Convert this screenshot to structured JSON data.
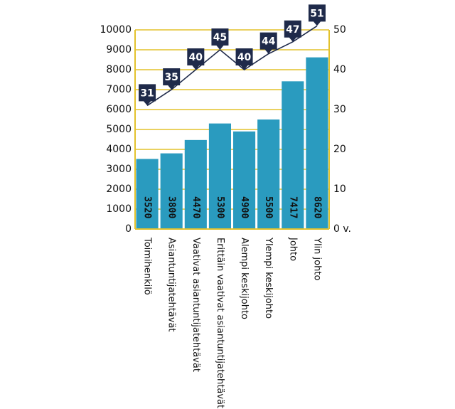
{
  "chart_data": {
    "type": "bar",
    "categories": [
      "Toimihenkilö",
      "Asiantuntijatehtävät",
      "Vaativat asiantuntijatehtävät",
      "Erittäin vaativat asiantuntijatehtävät",
      "Alempi keskijohto",
      "Ylempi keskijohto",
      "Johto",
      "Ylin johto"
    ],
    "bar_values": [
      3520,
      3800,
      4470,
      5300,
      4900,
      5500,
      7417,
      8620
    ],
    "bar_labels": [
      "3520",
      "3800",
      "4470",
      "5300",
      "4900",
      "5500",
      "7417",
      "8620"
    ],
    "line_values": [
      31,
      35,
      40,
      45,
      40,
      44,
      47,
      51
    ],
    "line_labels": [
      "31",
      "35",
      "40",
      "45",
      "40",
      "44",
      "47",
      "51"
    ],
    "left_axis": {
      "ylim": [
        0,
        10000
      ],
      "ticks": [
        "0",
        "1000",
        "2000",
        "3000",
        "4000",
        "5000",
        "6000",
        "7000",
        "8000",
        "9000",
        "10000"
      ]
    },
    "right_axis": {
      "ylim": [
        0,
        50
      ],
      "ticks": [
        "0 v.",
        "10",
        "20",
        "30",
        "40",
        "50"
      ]
    },
    "grid": true,
    "colors": {
      "bar": "#2a9bbf",
      "grid": "#e3c22c",
      "line": "#1f2a4a",
      "callout": "#1f2a4a"
    }
  }
}
